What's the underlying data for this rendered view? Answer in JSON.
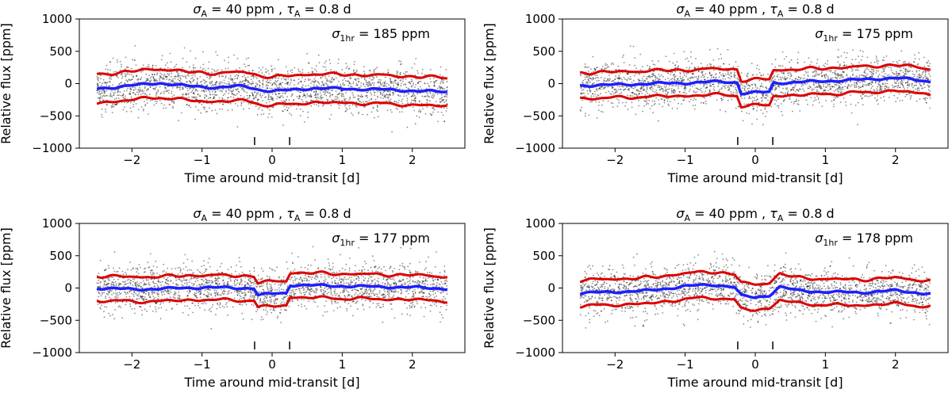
{
  "chart_data": [
    {
      "type": "scatter",
      "title": "σA = 40 ppm , τA = 0.8 d",
      "title_parts": {
        "sym": "σ",
        "sub": "A",
        "mid": " = 40 ppm , ",
        "sym2": "τ",
        "sub2": "A",
        "end": " = 0.8 d"
      },
      "annotation": {
        "sym": "σ",
        "sub": "1hr",
        "text": " = 185 ppm"
      },
      "xlabel": "Time around mid-transit [d]",
      "ylabel": "Relative flux [ppm]",
      "xlim": [
        -2.75,
        2.75
      ],
      "ylim": [
        -1000,
        1000
      ],
      "xticks": [
        -2,
        -1,
        0,
        1,
        2
      ],
      "yticks": [
        -1000,
        -500,
        0,
        500,
        1000
      ],
      "transit_markers": [
        -0.25,
        0.25
      ],
      "series": [
        {
          "name": "data",
          "color": "#000000",
          "x_range": [
            -2.5,
            2.5
          ],
          "scatter_sd": 185
        },
        {
          "name": "model",
          "color": "#1f1fff",
          "x": [
            -2.5,
            -2.0,
            -1.6,
            -1.2,
            -0.8,
            -0.4,
            -0.2,
            0.0,
            0.25,
            0.6,
            1.0,
            1.5,
            2.0,
            2.5
          ],
          "values": [
            -80,
            -30,
            10,
            -40,
            -60,
            -40,
            -90,
            -120,
            -100,
            -70,
            -80,
            -90,
            -110,
            -130
          ]
        },
        {
          "name": "band",
          "color": "#dd0000",
          "half_width": 220
        }
      ]
    },
    {
      "type": "scatter",
      "title": "σA = 40 ppm , τA = 0.8 d",
      "title_parts": {
        "sym": "σ",
        "sub": "A",
        "mid": " = 40 ppm , ",
        "sym2": "τ",
        "sub2": "A",
        "end": " = 0.8 d"
      },
      "annotation": {
        "sym": "σ",
        "sub": "1hr",
        "text": " = 175 ppm"
      },
      "xlabel": "Time around mid-transit [d]",
      "ylabel": "Relative flux [ppm]",
      "xlim": [
        -2.75,
        2.75
      ],
      "ylim": [
        -1000,
        1000
      ],
      "xticks": [
        -2,
        -1,
        0,
        1,
        2
      ],
      "yticks": [
        -1000,
        -500,
        0,
        500,
        1000
      ],
      "transit_markers": [
        -0.25,
        0.25
      ],
      "series": [
        {
          "name": "data",
          "color": "#000000",
          "x_range": [
            -2.5,
            2.5
          ],
          "scatter_sd": 175
        },
        {
          "name": "model",
          "color": "#1f1fff",
          "x": [
            -2.5,
            -2.0,
            -1.5,
            -1.0,
            -0.5,
            -0.26,
            -0.2,
            0.0,
            0.2,
            0.26,
            0.6,
            1.0,
            1.5,
            2.0,
            2.5
          ],
          "values": [
            -30,
            -20,
            0,
            10,
            30,
            20,
            -150,
            -140,
            -130,
            10,
            20,
            40,
            60,
            90,
            30
          ]
        },
        {
          "name": "band",
          "color": "#dd0000",
          "half_width": 200
        }
      ]
    },
    {
      "type": "scatter",
      "title": "σA = 40 ppm , τA = 0.8 d",
      "title_parts": {
        "sym": "σ",
        "sub": "A",
        "mid": " = 40 ppm , ",
        "sym2": "τ",
        "sub2": "A",
        "end": " = 0.8 d"
      },
      "annotation": {
        "sym": "σ",
        "sub": "1hr",
        "text": " = 177 ppm"
      },
      "xlabel": "Time around mid-transit [d]",
      "ylabel": "Relative flux [ppm]",
      "xlim": [
        -2.75,
        2.75
      ],
      "ylim": [
        -1000,
        1000
      ],
      "xticks": [
        -2,
        -1,
        0,
        1,
        2
      ],
      "yticks": [
        -1000,
        -500,
        0,
        500,
        1000
      ],
      "transit_markers": [
        -0.25,
        0.25
      ],
      "series": [
        {
          "name": "data",
          "color": "#000000",
          "x_range": [
            -2.5,
            2.5
          ],
          "scatter_sd": 177
        },
        {
          "name": "model",
          "color": "#1f1fff",
          "x": [
            -2.5,
            -2.0,
            -1.5,
            -1.0,
            -0.5,
            -0.26,
            -0.2,
            0.0,
            0.2,
            0.26,
            0.6,
            1.0,
            1.5,
            2.0,
            2.5
          ],
          "values": [
            0,
            -20,
            -10,
            10,
            0,
            0,
            -110,
            -90,
            -80,
            50,
            40,
            30,
            20,
            10,
            -10
          ]
        },
        {
          "name": "band",
          "color": "#dd0000",
          "half_width": 190
        }
      ]
    },
    {
      "type": "scatter",
      "title": "σA = 40 ppm , τA = 0.8 d",
      "title_parts": {
        "sym": "σ",
        "sub": "A",
        "mid": " = 40 ppm , ",
        "sym2": "τ",
        "sub2": "A",
        "end": " = 0.8 d"
      },
      "annotation": {
        "sym": "σ",
        "sub": "1hr",
        "text": " = 178 ppm"
      },
      "xlabel": "Time around mid-transit [d]",
      "ylabel": "Relative flux [ppm]",
      "xlim": [
        -2.75,
        2.75
      ],
      "ylim": [
        -1000,
        1000
      ],
      "xticks": [
        -2,
        -1,
        0,
        1,
        2
      ],
      "yticks": [
        -1000,
        -500,
        0,
        500,
        1000
      ],
      "transit_markers": [
        -0.25,
        0.25
      ],
      "series": [
        {
          "name": "data",
          "color": "#000000",
          "x_range": [
            -2.5,
            2.5
          ],
          "scatter_sd": 178
        },
        {
          "name": "model",
          "color": "#1f1fff",
          "x": [
            -2.5,
            -2.0,
            -1.5,
            -1.0,
            -0.6,
            -0.3,
            -0.2,
            0.0,
            0.2,
            0.35,
            0.6,
            1.0,
            1.5,
            2.0,
            2.5
          ],
          "values": [
            -80,
            -60,
            -40,
            30,
            50,
            20,
            -120,
            -150,
            -110,
            20,
            -40,
            -60,
            -70,
            -40,
            -90
          ]
        },
        {
          "name": "band",
          "color": "#dd0000",
          "half_width": 200
        }
      ]
    }
  ]
}
